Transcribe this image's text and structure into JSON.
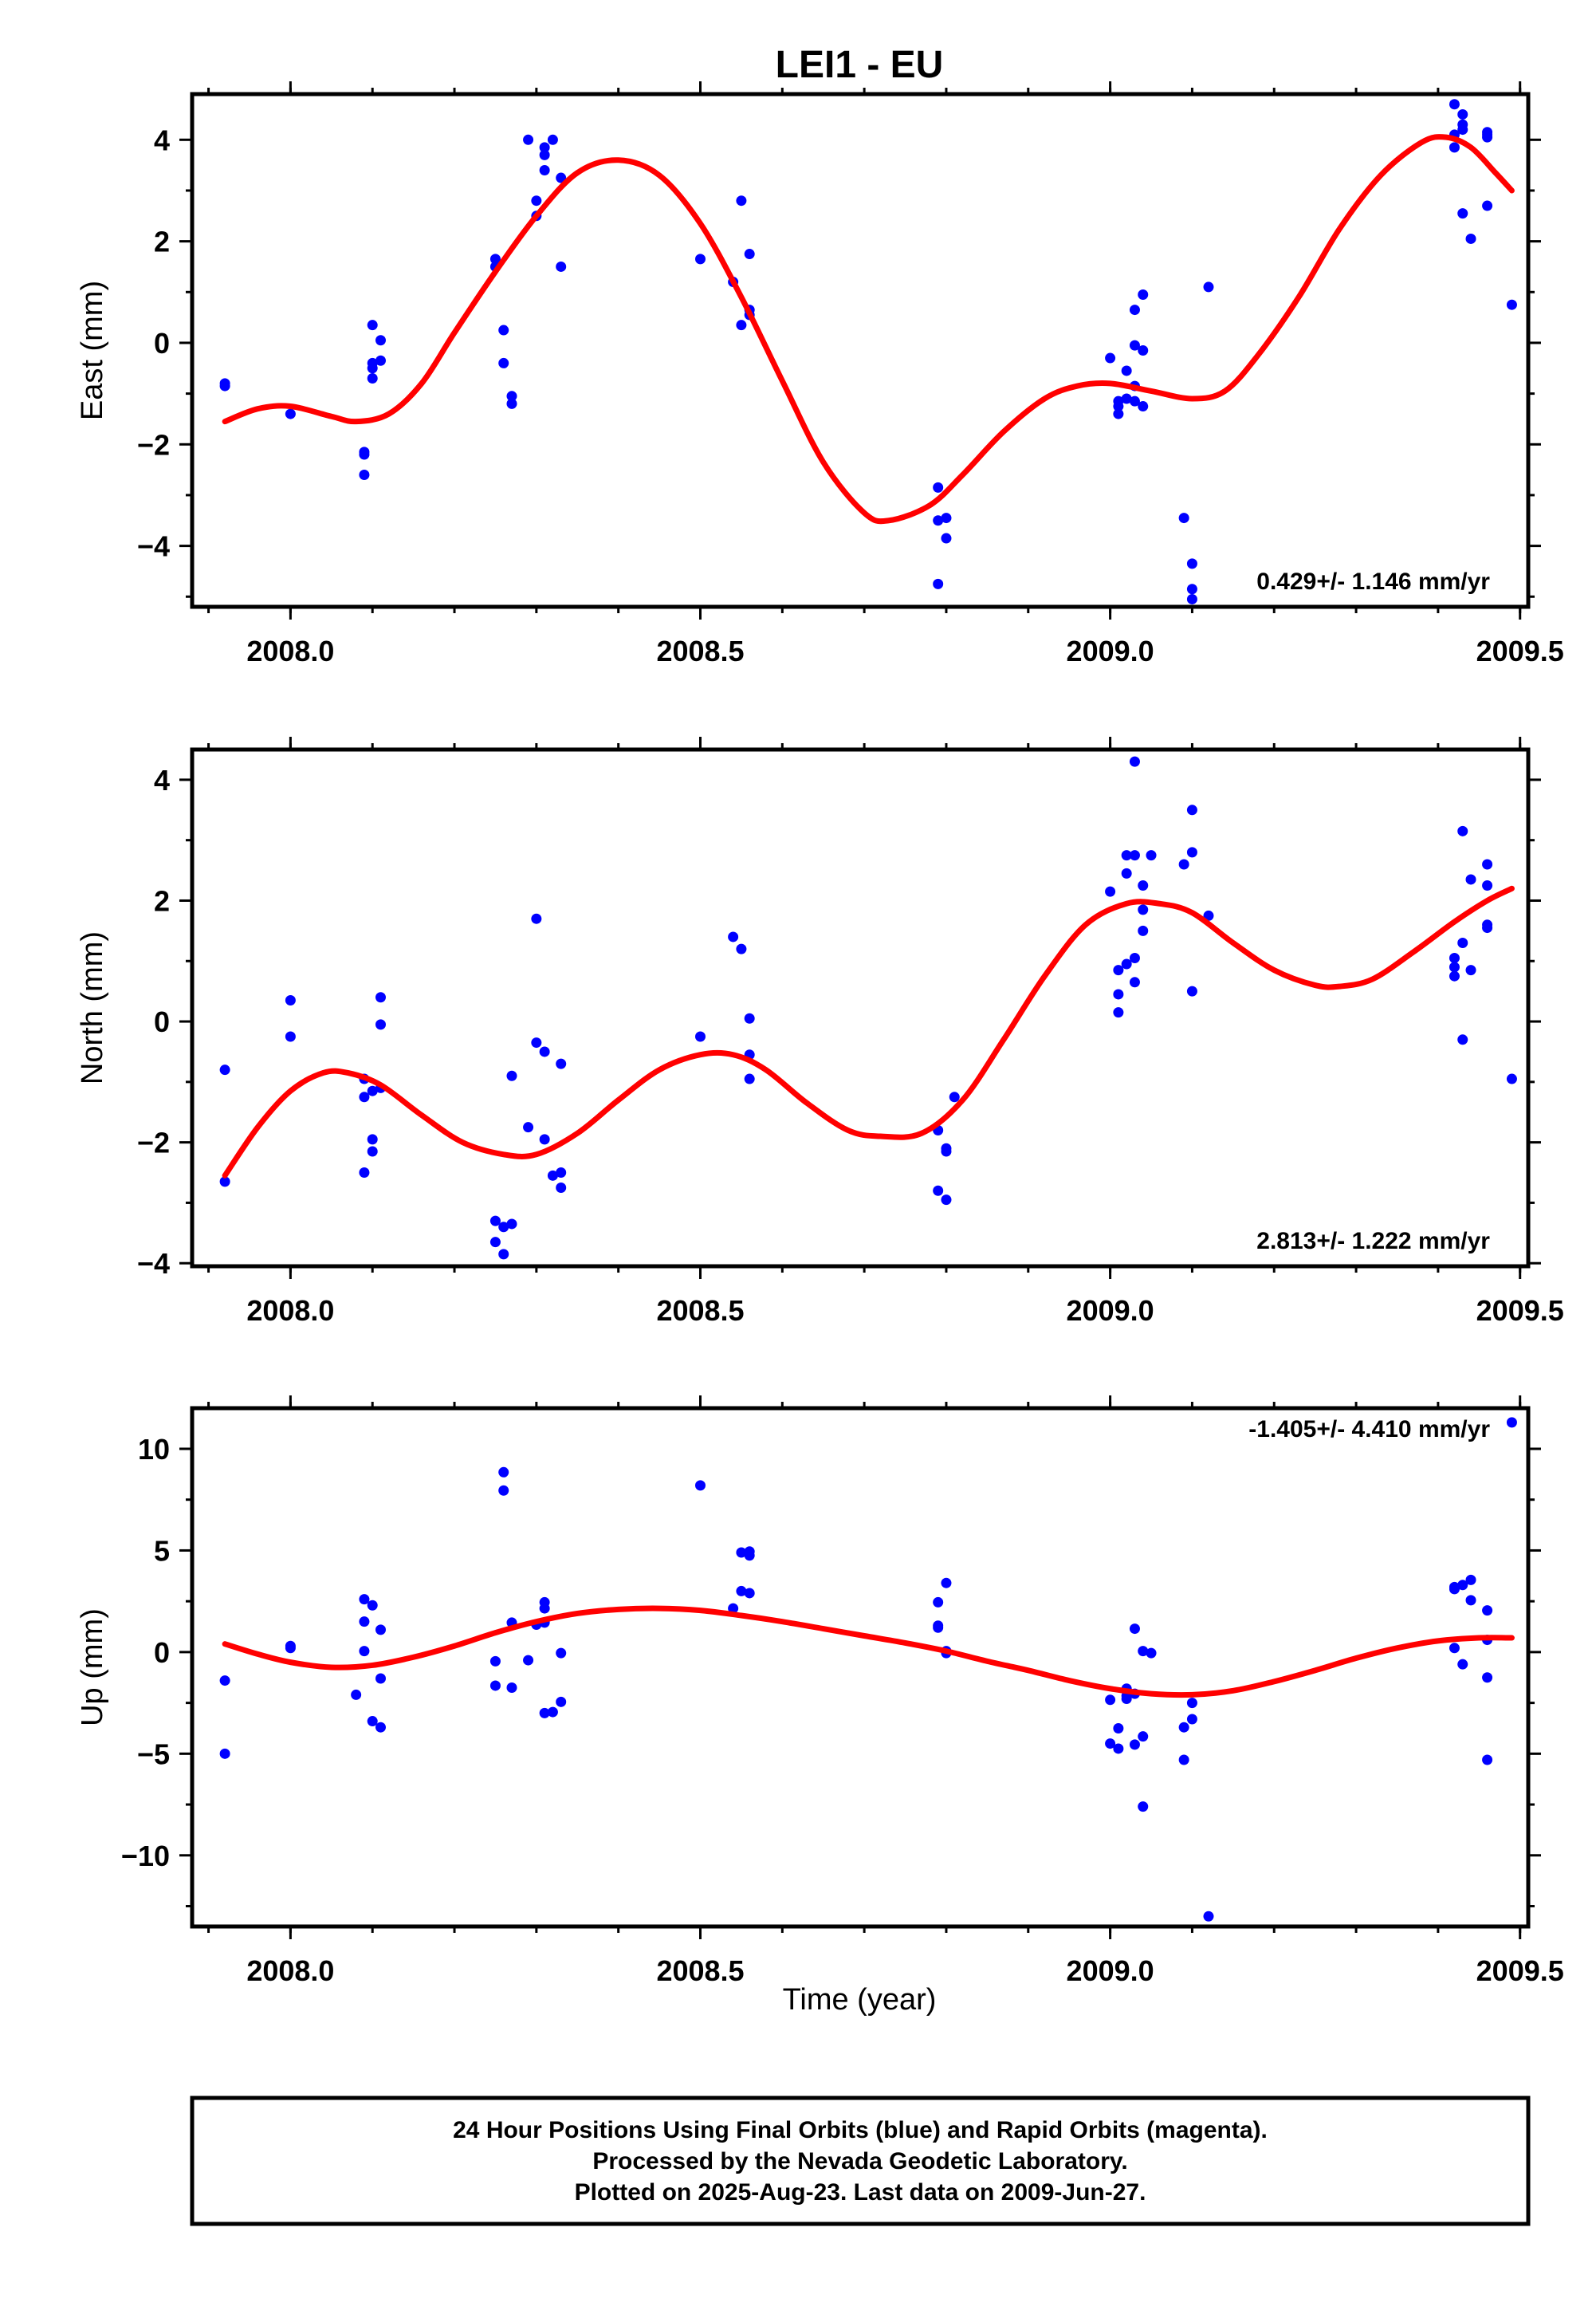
{
  "title": "LEI1 - EU",
  "xlabel": "Time (year)",
  "x_tick_labels": [
    "2008.0",
    "2008.5",
    "2009.0",
    "2009.5"
  ],
  "footer": {
    "line1": "24 Hour Positions Using Final Orbits (blue) and Rapid Orbits (magenta).",
    "line2": "Processed by the Nevada Geodetic Laboratory.",
    "line3": "Plotted on 2025-Aug-23. Last data on 2009-Jun-27."
  },
  "colors": {
    "points": "#0000ff",
    "fit": "#ff0000",
    "axis": "#000000"
  },
  "chart_data": [
    {
      "type": "scatter",
      "ylabel": "East (mm)",
      "rate_text": "0.429+/- 1.146 mm/yr",
      "xlim": [
        2007.88,
        2009.51
      ],
      "ylim": [
        -5.2,
        4.9
      ],
      "yticks": [
        4,
        2,
        0,
        -2,
        -4
      ],
      "ytick_labels": [
        "4",
        "2",
        "0",
        "−2",
        "−4"
      ],
      "points": [
        [
          2007.92,
          -0.8
        ],
        [
          2007.92,
          -0.85
        ],
        [
          2008.0,
          -1.4
        ],
        [
          2008.09,
          -2.2
        ],
        [
          2008.09,
          -2.6
        ],
        [
          2008.09,
          -2.15
        ],
        [
          2008.1,
          -0.7
        ],
        [
          2008.1,
          -0.5
        ],
        [
          2008.1,
          0.35
        ],
        [
          2008.11,
          0.05
        ],
        [
          2008.11,
          -0.35
        ],
        [
          2008.1,
          -0.4
        ],
        [
          2008.25,
          1.5
        ],
        [
          2008.25,
          1.65
        ],
        [
          2008.26,
          0.25
        ],
        [
          2008.26,
          -0.4
        ],
        [
          2008.27,
          -1.05
        ],
        [
          2008.27,
          -1.2
        ],
        [
          2008.29,
          4.0
        ],
        [
          2008.3,
          2.8
        ],
        [
          2008.3,
          2.5
        ],
        [
          2008.31,
          3.7
        ],
        [
          2008.31,
          3.85
        ],
        [
          2008.31,
          3.4
        ],
        [
          2008.32,
          4.0
        ],
        [
          2008.33,
          3.25
        ],
        [
          2008.33,
          1.5
        ],
        [
          2008.5,
          1.65
        ],
        [
          2008.54,
          1.2
        ],
        [
          2008.55,
          2.8
        ],
        [
          2008.55,
          0.35
        ],
        [
          2008.56,
          1.75
        ],
        [
          2008.56,
          0.65
        ],
        [
          2008.56,
          0.55
        ],
        [
          2008.79,
          -2.85
        ],
        [
          2008.79,
          -3.5
        ],
        [
          2008.79,
          -4.75
        ],
        [
          2008.8,
          -3.85
        ],
        [
          2008.8,
          -3.45
        ],
        [
          2009.0,
          -0.3
        ],
        [
          2009.01,
          -1.15
        ],
        [
          2009.01,
          -1.25
        ],
        [
          2009.01,
          -1.4
        ],
        [
          2009.02,
          -1.1
        ],
        [
          2009.02,
          -0.55
        ],
        [
          2009.03,
          -0.05
        ],
        [
          2009.03,
          -0.85
        ],
        [
          2009.03,
          -1.15
        ],
        [
          2009.04,
          -1.25
        ],
        [
          2009.03,
          0.65
        ],
        [
          2009.04,
          0.95
        ],
        [
          2009.04,
          -0.15
        ],
        [
          2009.09,
          -3.45
        ],
        [
          2009.1,
          -4.35
        ],
        [
          2009.1,
          -4.85
        ],
        [
          2009.1,
          -5.05
        ],
        [
          2009.12,
          1.1
        ],
        [
          2009.42,
          4.7
        ],
        [
          2009.42,
          3.85
        ],
        [
          2009.42,
          4.1
        ],
        [
          2009.43,
          4.5
        ],
        [
          2009.43,
          4.2
        ],
        [
          2009.43,
          4.3
        ],
        [
          2009.43,
          2.55
        ],
        [
          2009.44,
          2.05
        ],
        [
          2009.46,
          4.05
        ],
        [
          2009.46,
          4.15
        ],
        [
          2009.46,
          4.1
        ],
        [
          2009.46,
          2.7
        ],
        [
          2009.49,
          0.75
        ]
      ],
      "fit": [
        [
          2007.92,
          -1.55
        ],
        [
          2007.96,
          -1.3
        ],
        [
          2008.0,
          -1.25
        ],
        [
          2008.05,
          -1.45
        ],
        [
          2008.08,
          -1.55
        ],
        [
          2008.12,
          -1.4
        ],
        [
          2008.16,
          -0.8
        ],
        [
          2008.2,
          0.2
        ],
        [
          2008.25,
          1.4
        ],
        [
          2008.3,
          2.5
        ],
        [
          2008.35,
          3.35
        ],
        [
          2008.4,
          3.6
        ],
        [
          2008.45,
          3.3
        ],
        [
          2008.5,
          2.35
        ],
        [
          2008.55,
          0.9
        ],
        [
          2008.6,
          -0.75
        ],
        [
          2008.65,
          -2.35
        ],
        [
          2008.7,
          -3.35
        ],
        [
          2008.73,
          -3.5
        ],
        [
          2008.78,
          -3.2
        ],
        [
          2008.82,
          -2.6
        ],
        [
          2008.87,
          -1.75
        ],
        [
          2008.92,
          -1.1
        ],
        [
          2008.96,
          -0.85
        ],
        [
          2009.0,
          -0.8
        ],
        [
          2009.05,
          -0.95
        ],
        [
          2009.1,
          -1.1
        ],
        [
          2009.14,
          -0.95
        ],
        [
          2009.18,
          -0.25
        ],
        [
          2009.23,
          0.9
        ],
        [
          2009.28,
          2.25
        ],
        [
          2009.33,
          3.3
        ],
        [
          2009.38,
          3.95
        ],
        [
          2009.41,
          4.05
        ],
        [
          2009.44,
          3.85
        ],
        [
          2009.47,
          3.35
        ],
        [
          2009.49,
          3.0
        ]
      ]
    },
    {
      "type": "scatter",
      "ylabel": "North (mm)",
      "rate_text": "2.813+/- 1.222 mm/yr",
      "xlim": [
        2007.88,
        2009.51
      ],
      "ylim": [
        -4.05,
        4.5
      ],
      "yticks": [
        4,
        2,
        0,
        -2,
        -4
      ],
      "ytick_labels": [
        "4",
        "2",
        "0",
        "−2",
        "−4"
      ],
      "points": [
        [
          2007.92,
          -0.8
        ],
        [
          2007.92,
          -2.65
        ],
        [
          2008.0,
          0.35
        ],
        [
          2008.0,
          -0.25
        ],
        [
          2008.09,
          -1.25
        ],
        [
          2008.09,
          -0.95
        ],
        [
          2008.09,
          -2.5
        ],
        [
          2008.1,
          -1.95
        ],
        [
          2008.1,
          -2.15
        ],
        [
          2008.1,
          -1.15
        ],
        [
          2008.11,
          -1.1
        ],
        [
          2008.11,
          0.4
        ],
        [
          2008.11,
          -0.05
        ],
        [
          2008.25,
          -3.3
        ],
        [
          2008.25,
          -3.65
        ],
        [
          2008.26,
          -3.85
        ],
        [
          2008.26,
          -3.4
        ],
        [
          2008.27,
          -3.35
        ],
        [
          2008.27,
          -0.9
        ],
        [
          2008.29,
          -1.75
        ],
        [
          2008.3,
          1.7
        ],
        [
          2008.3,
          -0.35
        ],
        [
          2008.31,
          -0.5
        ],
        [
          2008.31,
          -1.95
        ],
        [
          2008.32,
          -2.55
        ],
        [
          2008.33,
          -2.5
        ],
        [
          2008.33,
          -2.75
        ],
        [
          2008.33,
          -0.7
        ],
        [
          2008.5,
          -0.25
        ],
        [
          2008.54,
          1.4
        ],
        [
          2008.55,
          1.2
        ],
        [
          2008.56,
          -0.55
        ],
        [
          2008.56,
          -0.95
        ],
        [
          2008.56,
          0.05
        ],
        [
          2008.79,
          -1.8
        ],
        [
          2008.79,
          -2.8
        ],
        [
          2008.8,
          -2.15
        ],
        [
          2008.8,
          -2.95
        ],
        [
          2008.8,
          -2.1
        ],
        [
          2008.81,
          -1.25
        ],
        [
          2009.0,
          2.15
        ],
        [
          2009.01,
          0.15
        ],
        [
          2009.01,
          0.45
        ],
        [
          2009.01,
          0.85
        ],
        [
          2009.02,
          0.95
        ],
        [
          2009.02,
          2.45
        ],
        [
          2009.02,
          2.75
        ],
        [
          2009.03,
          0.65
        ],
        [
          2009.03,
          1.05
        ],
        [
          2009.03,
          2.75
        ],
        [
          2009.03,
          4.3
        ],
        [
          2009.04,
          1.5
        ],
        [
          2009.04,
          2.25
        ],
        [
          2009.04,
          1.85
        ],
        [
          2009.05,
          2.75
        ],
        [
          2009.09,
          2.6
        ],
        [
          2009.1,
          3.5
        ],
        [
          2009.1,
          2.8
        ],
        [
          2009.1,
          0.5
        ],
        [
          2009.12,
          1.75
        ],
        [
          2009.42,
          1.05
        ],
        [
          2009.42,
          0.75
        ],
        [
          2009.42,
          0.9
        ],
        [
          2009.43,
          1.3
        ],
        [
          2009.43,
          -0.3
        ],
        [
          2009.44,
          0.85
        ],
        [
          2009.43,
          3.15
        ],
        [
          2009.44,
          2.35
        ],
        [
          2009.46,
          2.6
        ],
        [
          2009.46,
          1.6
        ],
        [
          2009.46,
          1.55
        ],
        [
          2009.46,
          2.25
        ],
        [
          2009.49,
          -0.95
        ]
      ],
      "fit": [
        [
          2007.92,
          -2.55
        ],
        [
          2007.96,
          -1.75
        ],
        [
          2008.0,
          -1.15
        ],
        [
          2008.04,
          -0.85
        ],
        [
          2008.07,
          -0.85
        ],
        [
          2008.11,
          -1.05
        ],
        [
          2008.16,
          -1.55
        ],
        [
          2008.21,
          -2.0
        ],
        [
          2008.26,
          -2.2
        ],
        [
          2008.3,
          -2.2
        ],
        [
          2008.35,
          -1.85
        ],
        [
          2008.4,
          -1.3
        ],
        [
          2008.45,
          -0.8
        ],
        [
          2008.5,
          -0.55
        ],
        [
          2008.54,
          -0.55
        ],
        [
          2008.58,
          -0.8
        ],
        [
          2008.63,
          -1.35
        ],
        [
          2008.68,
          -1.8
        ],
        [
          2008.72,
          -1.9
        ],
        [
          2008.77,
          -1.85
        ],
        [
          2008.82,
          -1.3
        ],
        [
          2008.87,
          -0.3
        ],
        [
          2008.92,
          0.75
        ],
        [
          2008.97,
          1.6
        ],
        [
          2009.02,
          1.95
        ],
        [
          2009.06,
          1.95
        ],
        [
          2009.1,
          1.8
        ],
        [
          2009.15,
          1.3
        ],
        [
          2009.2,
          0.85
        ],
        [
          2009.25,
          0.6
        ],
        [
          2009.28,
          0.58
        ],
        [
          2009.32,
          0.7
        ],
        [
          2009.37,
          1.15
        ],
        [
          2009.42,
          1.65
        ],
        [
          2009.46,
          2.0
        ],
        [
          2009.49,
          2.2
        ]
      ]
    },
    {
      "type": "scatter",
      "ylabel": "Up (mm)",
      "rate_text": "-1.405+/- 4.410 mm/yr",
      "xlim": [
        2007.88,
        2009.51
      ],
      "ylim": [
        -13.5,
        12.0
      ],
      "yticks": [
        10,
        5,
        0,
        -5,
        -10
      ],
      "ytick_labels": [
        "10",
        "5",
        "0",
        "−5",
        "−10"
      ],
      "points": [
        [
          2007.92,
          -1.4
        ],
        [
          2007.92,
          -5.0
        ],
        [
          2008.0,
          0.3
        ],
        [
          2008.0,
          0.2
        ],
        [
          2008.08,
          -2.1
        ],
        [
          2008.09,
          2.6
        ],
        [
          2008.09,
          1.5
        ],
        [
          2008.09,
          0.05
        ],
        [
          2008.1,
          2.3
        ],
        [
          2008.1,
          -3.4
        ],
        [
          2008.11,
          -3.7
        ],
        [
          2008.11,
          -1.3
        ],
        [
          2008.11,
          1.1
        ],
        [
          2008.25,
          -0.45
        ],
        [
          2008.25,
          -1.65
        ],
        [
          2008.26,
          8.85
        ],
        [
          2008.26,
          7.95
        ],
        [
          2008.27,
          -1.75
        ],
        [
          2008.27,
          1.45
        ],
        [
          2008.29,
          -0.4
        ],
        [
          2008.3,
          1.35
        ],
        [
          2008.31,
          2.15
        ],
        [
          2008.31,
          2.45
        ],
        [
          2008.31,
          1.45
        ],
        [
          2008.31,
          -3.0
        ],
        [
          2008.32,
          -2.95
        ],
        [
          2008.33,
          -2.45
        ],
        [
          2008.33,
          -0.05
        ],
        [
          2008.5,
          8.2
        ],
        [
          2008.54,
          2.15
        ],
        [
          2008.55,
          4.9
        ],
        [
          2008.55,
          3.0
        ],
        [
          2008.56,
          4.95
        ],
        [
          2008.56,
          4.75
        ],
        [
          2008.56,
          2.9
        ],
        [
          2008.79,
          1.3
        ],
        [
          2008.79,
          1.2
        ],
        [
          2008.79,
          2.45
        ],
        [
          2008.8,
          0.05
        ],
        [
          2008.8,
          -0.05
        ],
        [
          2008.8,
          3.4
        ],
        [
          2009.0,
          -2.35
        ],
        [
          2009.0,
          -4.5
        ],
        [
          2009.01,
          -4.75
        ],
        [
          2009.01,
          -3.75
        ],
        [
          2009.02,
          -2.15
        ],
        [
          2009.02,
          -2.3
        ],
        [
          2009.02,
          -1.8
        ],
        [
          2009.03,
          1.15
        ],
        [
          2009.03,
          -4.55
        ],
        [
          2009.03,
          -2.05
        ],
        [
          2009.04,
          -4.15
        ],
        [
          2009.04,
          -7.6
        ],
        [
          2009.04,
          0.05
        ],
        [
          2009.05,
          -0.05
        ],
        [
          2009.09,
          -3.7
        ],
        [
          2009.09,
          -5.3
        ],
        [
          2009.1,
          -3.3
        ],
        [
          2009.1,
          -2.5
        ],
        [
          2009.12,
          -13.0
        ],
        [
          2009.42,
          3.2
        ],
        [
          2009.42,
          0.2
        ],
        [
          2009.42,
          3.1
        ],
        [
          2009.43,
          3.3
        ],
        [
          2009.43,
          -0.6
        ],
        [
          2009.44,
          3.55
        ],
        [
          2009.44,
          2.55
        ],
        [
          2009.46,
          -1.25
        ],
        [
          2009.46,
          -5.3
        ],
        [
          2009.46,
          2.05
        ],
        [
          2009.46,
          0.6
        ],
        [
          2009.49,
          11.3
        ]
      ],
      "fit": [
        [
          2007.92,
          0.4
        ],
        [
          2007.96,
          -0.1
        ],
        [
          2008.0,
          -0.5
        ],
        [
          2008.05,
          -0.75
        ],
        [
          2008.1,
          -0.65
        ],
        [
          2008.15,
          -0.25
        ],
        [
          2008.2,
          0.3
        ],
        [
          2008.25,
          0.95
        ],
        [
          2008.3,
          1.5
        ],
        [
          2008.35,
          1.9
        ],
        [
          2008.4,
          2.1
        ],
        [
          2008.45,
          2.15
        ],
        [
          2008.5,
          2.05
        ],
        [
          2008.55,
          1.8
        ],
        [
          2008.6,
          1.5
        ],
        [
          2008.65,
          1.15
        ],
        [
          2008.7,
          0.8
        ],
        [
          2008.75,
          0.45
        ],
        [
          2008.8,
          0.05
        ],
        [
          2008.85,
          -0.45
        ],
        [
          2008.9,
          -0.9
        ],
        [
          2008.95,
          -1.4
        ],
        [
          2009.0,
          -1.8
        ],
        [
          2009.05,
          -2.05
        ],
        [
          2009.1,
          -2.1
        ],
        [
          2009.15,
          -1.9
        ],
        [
          2009.2,
          -1.45
        ],
        [
          2009.25,
          -0.9
        ],
        [
          2009.3,
          -0.3
        ],
        [
          2009.35,
          0.2
        ],
        [
          2009.4,
          0.55
        ],
        [
          2009.45,
          0.7
        ],
        [
          2009.49,
          0.7
        ]
      ]
    }
  ]
}
